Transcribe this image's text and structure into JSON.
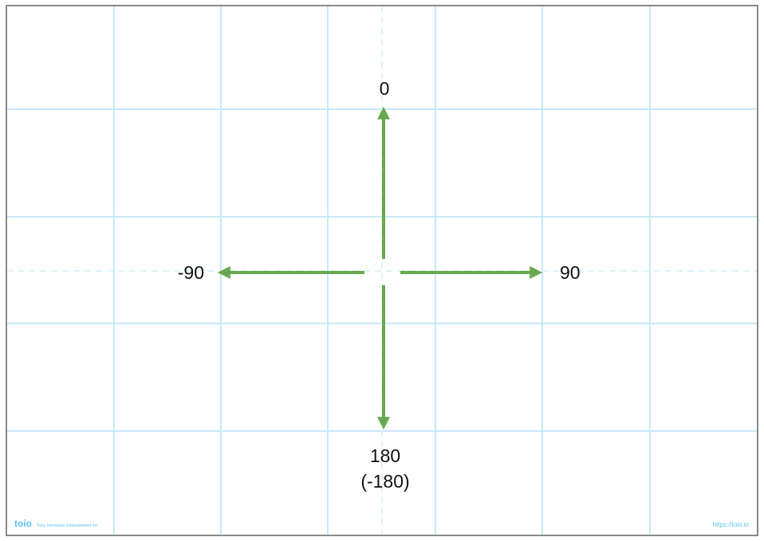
{
  "colors": {
    "border": "#8a8a8a",
    "grid": "#c9e9f8",
    "center_line": "#dff3fb",
    "arrow": "#6aa84f",
    "label": "#111111",
    "brand": "#5cc3ec"
  },
  "labels": {
    "up": "0",
    "right": "90",
    "left": "-90",
    "down_line1": "180",
    "down_line2": "(-180)"
  },
  "footer": {
    "logo": "toio",
    "company": "Sony Interactive Entertainment Inc.",
    "url": "https://toio.io"
  }
}
